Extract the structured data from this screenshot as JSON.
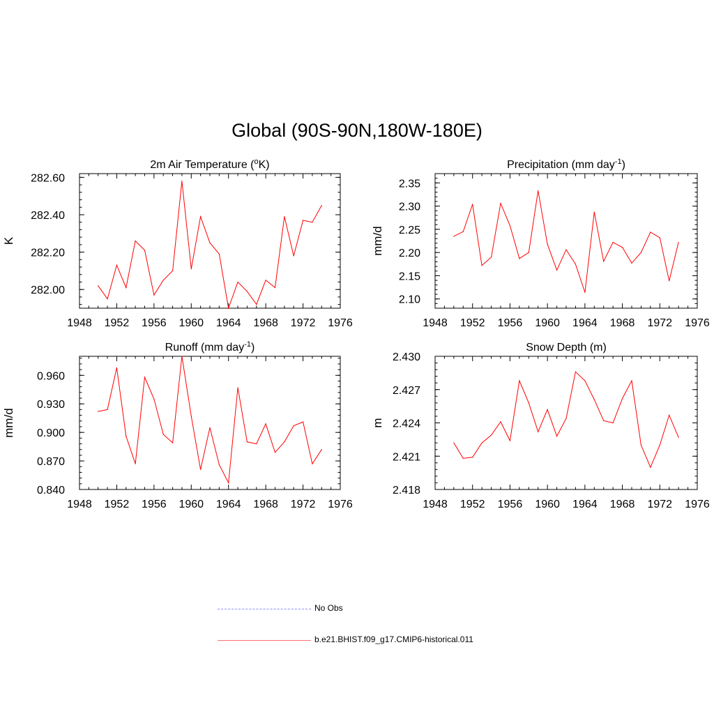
{
  "title": "Global (90S-90N,180W-180E)",
  "colors": {
    "model_line": "#ff0000",
    "obs_line": "#8a8aff",
    "axis": "#000000"
  },
  "legend": {
    "obs_label": "No Obs",
    "model_label": "b.e21.BHIST.f09_g17.CMIP6-historical.011"
  },
  "chart_data": [
    {
      "type": "line",
      "title": "2m Air Temperature (",
      "title_sup": "o",
      "title_tail": "K)",
      "ylabel": "K",
      "xlim": [
        1948,
        1976
      ],
      "x_ticks": [
        1948,
        1952,
        1956,
        1960,
        1964,
        1968,
        1972,
        1976
      ],
      "ylim": [
        281.9,
        282.62
      ],
      "y_ticks": [
        282.0,
        282.2,
        282.4,
        282.6
      ],
      "y_tick_labels": [
        "282.00",
        "282.20",
        "282.40",
        "282.60"
      ],
      "y_minor_step": 0.04,
      "series": [
        {
          "x": [
            1950,
            1951,
            1952,
            1953,
            1954,
            1955,
            1956,
            1957,
            1958,
            1959,
            1960,
            1961,
            1962,
            1963,
            1964,
            1965,
            1966,
            1967,
            1968,
            1969,
            1970,
            1971,
            1972,
            1973,
            1974
          ],
          "values": [
            282.02,
            281.95,
            282.13,
            282.01,
            282.26,
            282.21,
            281.97,
            282.05,
            282.1,
            282.58,
            282.11,
            282.39,
            282.25,
            282.19,
            281.9,
            282.04,
            281.99,
            281.92,
            282.05,
            282.01,
            282.39,
            282.18,
            282.37,
            282.36,
            282.45
          ]
        }
      ]
    },
    {
      "type": "line",
      "title": "Precipitation (mm day",
      "title_sup": "-1",
      "title_tail": ")",
      "ylabel": "mm/d",
      "xlim": [
        1948,
        1976
      ],
      "x_ticks": [
        1948,
        1952,
        1956,
        1960,
        1964,
        1968,
        1972,
        1976
      ],
      "ylim": [
        2.08,
        2.37
      ],
      "y_ticks": [
        2.1,
        2.15,
        2.2,
        2.25,
        2.3,
        2.35
      ],
      "y_tick_labels": [
        "2.10",
        "2.15",
        "2.20",
        "2.25",
        "2.30",
        "2.35"
      ],
      "y_minor_step": 0.01,
      "series": [
        {
          "x": [
            1950,
            1951,
            1952,
            1953,
            1954,
            1955,
            1956,
            1957,
            1958,
            1959,
            1960,
            1961,
            1962,
            1963,
            1964,
            1965,
            1966,
            1967,
            1968,
            1969,
            1970,
            1971,
            1972,
            1973,
            1974
          ],
          "values": [
            2.235,
            2.245,
            2.304,
            2.172,
            2.19,
            2.306,
            2.258,
            2.187,
            2.2,
            2.333,
            2.218,
            2.162,
            2.206,
            2.175,
            2.114,
            2.287,
            2.181,
            2.222,
            2.211,
            2.177,
            2.2,
            2.244,
            2.232,
            2.139,
            2.222
          ]
        }
      ]
    },
    {
      "type": "line",
      "title": "Runoff (mm day",
      "title_sup": "-1",
      "title_tail": ")",
      "ylabel": "mm/d",
      "xlim": [
        1948,
        1976
      ],
      "x_ticks": [
        1948,
        1952,
        1956,
        1960,
        1964,
        1968,
        1972,
        1976
      ],
      "ylim": [
        0.84,
        0.98
      ],
      "y_ticks": [
        0.84,
        0.87,
        0.9,
        0.93,
        0.96
      ],
      "y_tick_labels": [
        "0.840",
        "0.870",
        "0.900",
        "0.930",
        "0.960"
      ],
      "y_minor_step": 0.006,
      "series": [
        {
          "x": [
            1950,
            1951,
            1952,
            1953,
            1954,
            1955,
            1956,
            1957,
            1958,
            1959,
            1960,
            1961,
            1962,
            1963,
            1964,
            1965,
            1966,
            1967,
            1968,
            1969,
            1970,
            1971,
            1972,
            1973,
            1974
          ],
          "values": [
            0.922,
            0.924,
            0.968,
            0.896,
            0.867,
            0.958,
            0.935,
            0.898,
            0.889,
            0.98,
            0.917,
            0.861,
            0.905,
            0.866,
            0.847,
            0.947,
            0.89,
            0.888,
            0.909,
            0.879,
            0.89,
            0.907,
            0.911,
            0.867,
            0.882
          ]
        }
      ]
    },
    {
      "type": "line",
      "title": "Snow Depth (m)",
      "title_sup": "",
      "title_tail": "",
      "ylabel": "m",
      "xlim": [
        1948,
        1976
      ],
      "x_ticks": [
        1948,
        1952,
        1956,
        1960,
        1964,
        1968,
        1972,
        1976
      ],
      "ylim": [
        2.418,
        2.43
      ],
      "y_ticks": [
        2.418,
        2.421,
        2.424,
        2.427,
        2.43
      ],
      "y_tick_labels": [
        "2.418",
        "2.421",
        "2.424",
        "2.427",
        "2.430"
      ],
      "y_minor_step": 0.0006,
      "series": [
        {
          "x": [
            1950,
            1951,
            1952,
            1953,
            1954,
            1955,
            1956,
            1957,
            1958,
            1959,
            1960,
            1961,
            1962,
            1963,
            1964,
            1965,
            1966,
            1967,
            1968,
            1969,
            1970,
            1971,
            1972,
            1973,
            1974
          ],
          "values": [
            2.4222,
            2.4208,
            2.4209,
            2.4222,
            2.4229,
            2.4241,
            2.4224,
            2.4278,
            2.4258,
            2.4232,
            2.4252,
            2.4228,
            2.4244,
            2.4286,
            2.4278,
            2.4261,
            2.4242,
            2.424,
            2.4262,
            2.4278,
            2.422,
            2.42,
            2.422,
            2.4247,
            2.4227
          ]
        }
      ]
    }
  ]
}
